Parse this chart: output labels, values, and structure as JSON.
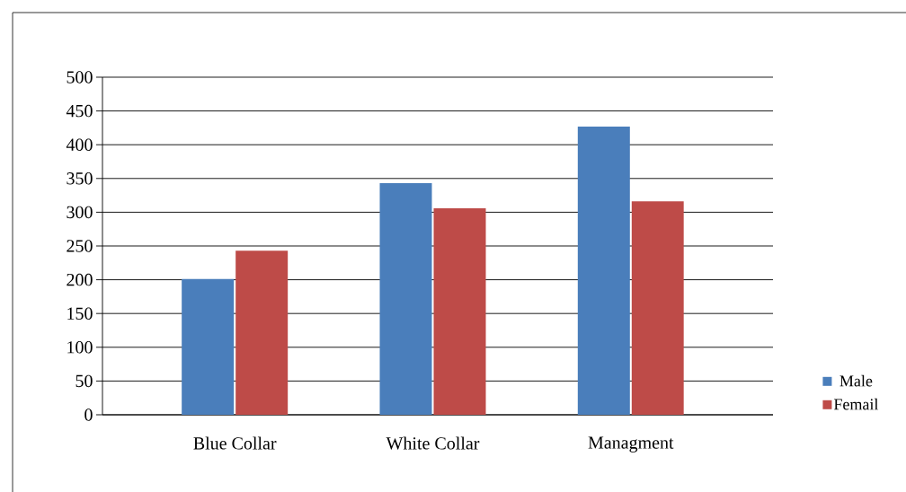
{
  "chart_data": {
    "type": "bar",
    "categories": [
      "Blue Collar",
      "White Collar",
      "Managment"
    ],
    "series": [
      {
        "name": "Male",
        "color": "#4a7ebb",
        "values": [
          201,
          343,
          427
        ]
      },
      {
        "name": "Femail",
        "color": "#be4b48",
        "values": [
          243,
          306,
          316
        ]
      }
    ],
    "ylim": [
      0,
      500
    ],
    "yticks": [
      0,
      50,
      100,
      150,
      200,
      250,
      300,
      350,
      400,
      450,
      500
    ],
    "grid": "y",
    "legend": "right"
  }
}
